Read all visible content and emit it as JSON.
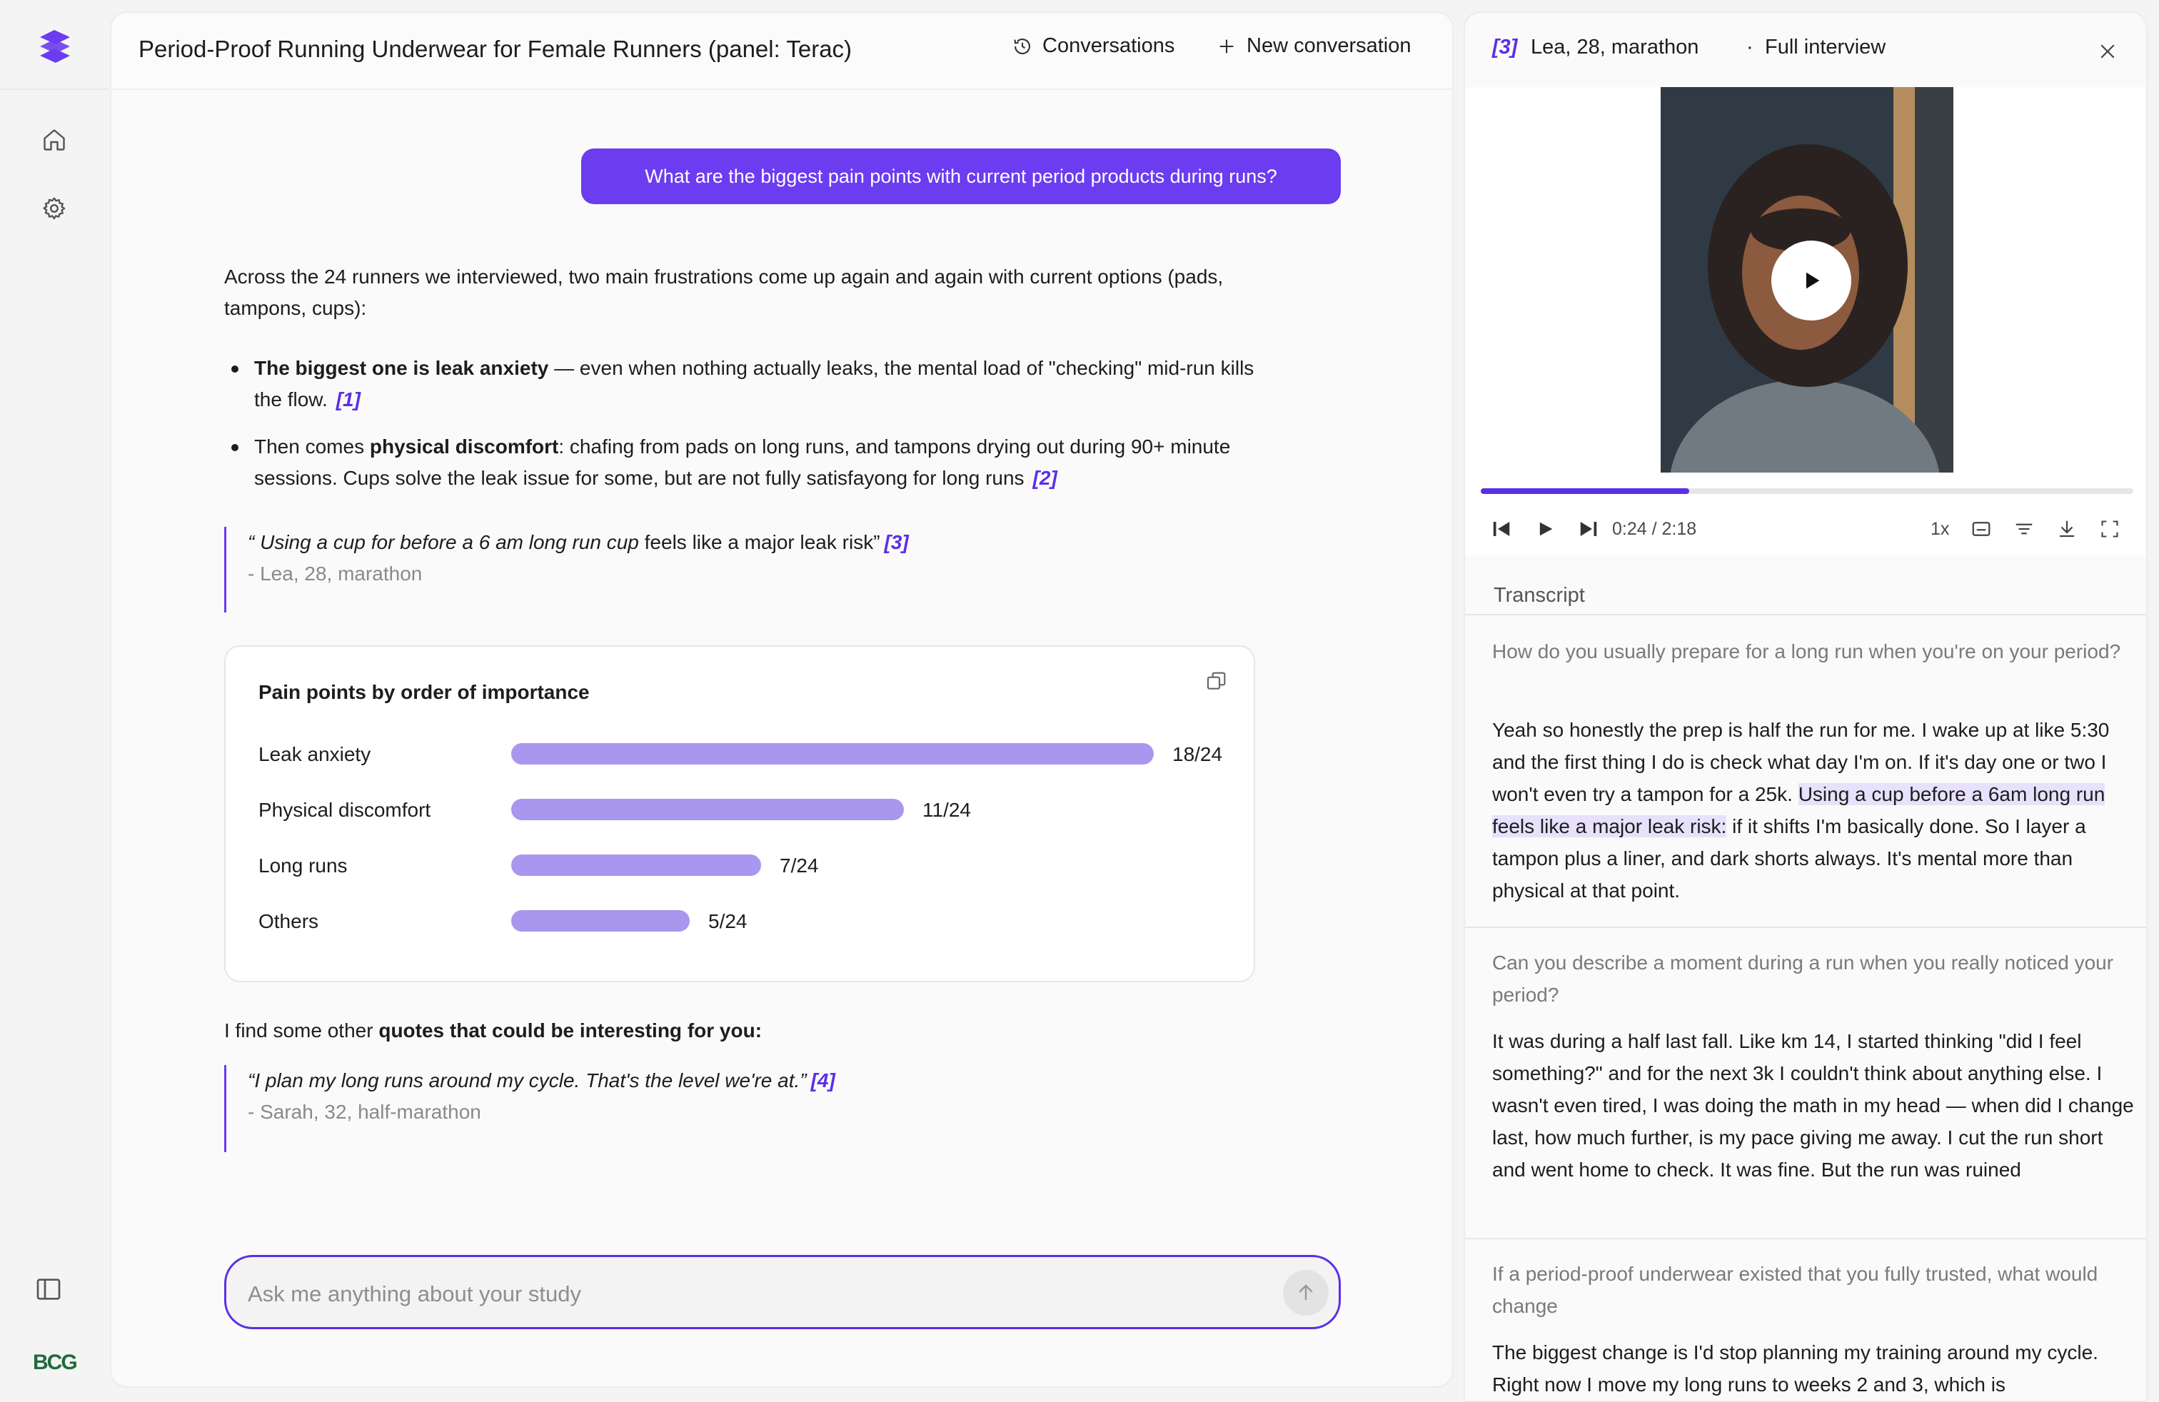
{
  "rail": {
    "brand": "BCG"
  },
  "header": {
    "title": "Period-Proof Running Underwear for Female Runners (panel: Terac)",
    "conversations_label": "Conversations",
    "new_conversation_label": "New conversation"
  },
  "conversation": {
    "question": "What are the biggest pain points with current period products during runs?",
    "intro": "Across the 24 runners we interviewed, two main frustrations come up again and again with current options (pads, tampons, cups):",
    "bullets": [
      {
        "bold": "The biggest one is leak anxiety",
        "text": " — even when nothing actually leaks, the mental load of \"checking\" mid-run kills the flow.",
        "cite": "[1]"
      },
      {
        "pre": "Then comes ",
        "bold": "physical discomfort",
        "text": ": chafing from pads on long runs, and tampons drying out during 90+ minute sessions. Cups solve the leak issue for some, but are not fully satisfayong for long runs",
        "cite": "[2]"
      }
    ],
    "quote1": {
      "open": "“ Using a cup for before a 6 am long run cup",
      "plain": " feels like a major leak risk”",
      "cite": "[3]",
      "source": "- Lea, 28, marathon"
    },
    "other_intro": {
      "pre": "I find some other ",
      "bold": "quotes that could be interesting for you:"
    },
    "quote2": {
      "text": "“I plan my long runs around my cycle. That's the level we're at.”",
      "cite": "[4]",
      "source": "- Sarah, 32, half-marathon"
    }
  },
  "chart_data": {
    "type": "bar",
    "orientation": "horizontal",
    "title": "Pain points by order of importance",
    "categories": [
      "Leak anxiety",
      "Physical discomfort",
      "Long runs",
      "Others"
    ],
    "values": [
      18,
      11,
      7,
      5
    ],
    "total": 24,
    "value_labels": [
      "18/24",
      "11/24",
      "7/24",
      "5/24"
    ],
    "bar_color": "#a996ef",
    "xlim": [
      0,
      18
    ]
  },
  "input": {
    "placeholder": "Ask me anything about your study"
  },
  "side": {
    "ref": "[3]",
    "who": "Lea, 28, marathon",
    "sep": "·",
    "full": "Full interview",
    "player": {
      "time": "0:24 / 2:18",
      "speed": "1x",
      "progress": 0.32
    },
    "transcript_label": "Transcript",
    "transcript": [
      {
        "q": "How do you usually prepare for a long run when you're on your period?",
        "a_pre": "Yeah so honestly the prep is half the run for me. I wake up at like 5:30 and the first thing I do is check what day I'm on. If it's day one or two I won't even try a tampon for a 25k. ",
        "a_hl": "Using a cup before a 6am long run feels like a major leak risk:",
        "a_post": " if it shifts I'm basically done. So I layer a tampon plus a liner, and dark shorts always. It's mental more than physical at that point."
      },
      {
        "q": "Can you describe a moment during a run when you really noticed your period?",
        "a": "It was during a half last fall. Like km 14, I started thinking \"did I feel something?\" and for the next 3k I couldn't think about anything else. I wasn't even tired, I was doing the math in my head — when did I change last, how much further, is my pace giving me away. I cut the run short and went home to check. It was fine. But the run was ruined"
      },
      {
        "q": "If a period-proof underwear existed that you fully trusted, what would change",
        "a": "The biggest change is I'd stop planning my training around my cycle. Right now I move my long runs to weeks 2 and 3, which is"
      }
    ]
  },
  "colors": {
    "accent": "#5b2fe6",
    "question_bg": "#6b3cf0",
    "bar": "#a996ef"
  }
}
